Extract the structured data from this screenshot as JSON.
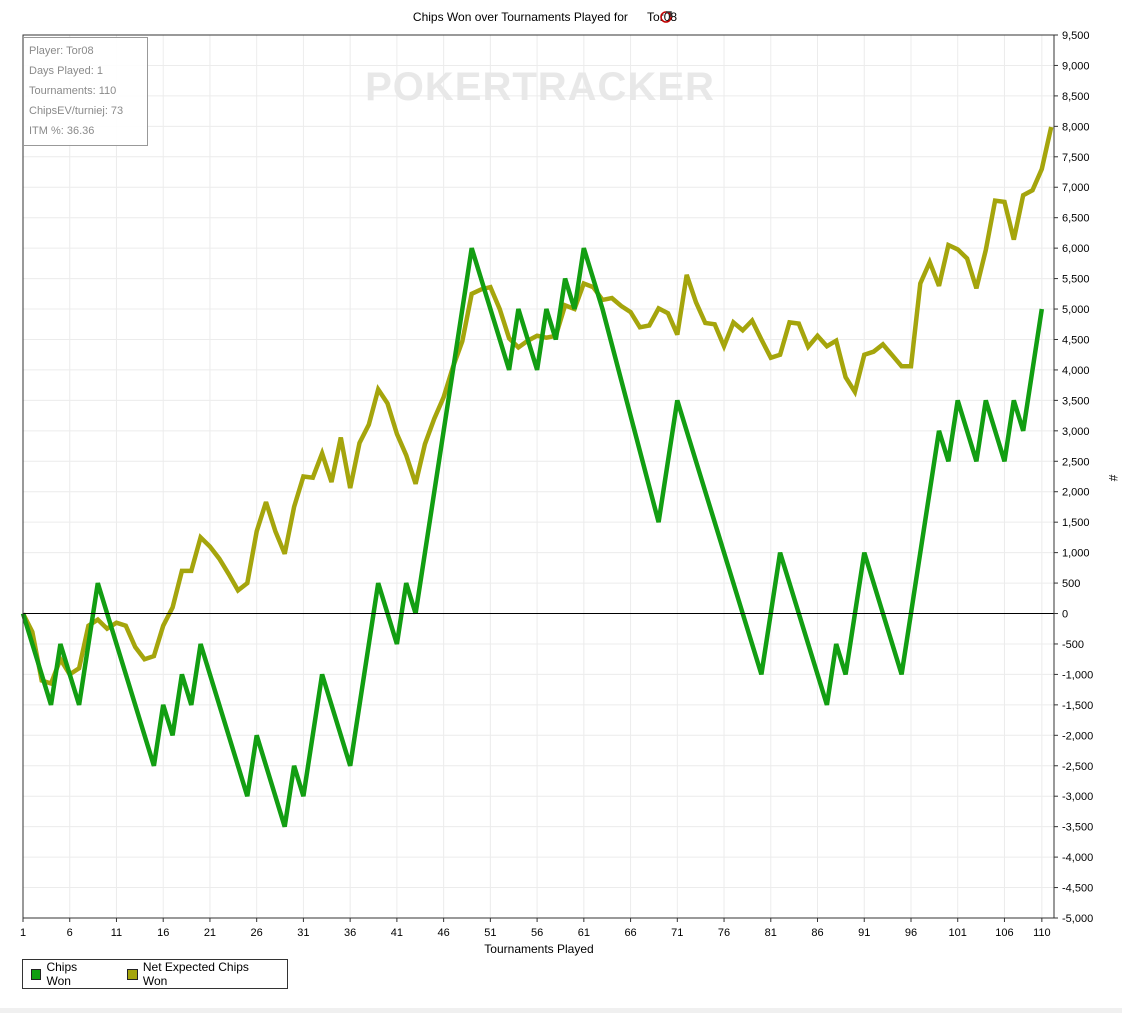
{
  "chart_data": {
    "type": "line",
    "title_prefix": "Chips Won over Tournaments Played for",
    "title_player": "Tor08",
    "xlabel": "Tournaments Played",
    "ylabel": "#",
    "xlim": [
      1,
      110
    ],
    "ylim": [
      -5000,
      9500
    ],
    "x_ticks": [
      1,
      6,
      11,
      16,
      21,
      26,
      31,
      36,
      41,
      46,
      51,
      56,
      61,
      66,
      71,
      76,
      81,
      86,
      91,
      96,
      101,
      106,
      110
    ],
    "y_ticks": [
      9500,
      9000,
      8500,
      8000,
      7500,
      7000,
      6500,
      6000,
      5500,
      5000,
      4500,
      4000,
      3500,
      3000,
      2500,
      2000,
      1500,
      1000,
      500,
      0,
      -500,
      -1000,
      -1500,
      -2000,
      -2500,
      -3000,
      -3500,
      -4000,
      -4500,
      -5000
    ],
    "y_tick_labels": [
      "9,500",
      "9,000",
      "8,500",
      "8,000",
      "7,500",
      "7,000",
      "6,500",
      "6,000",
      "5,500",
      "5,000",
      "4,500",
      "4,000",
      "3,500",
      "3,000",
      "2,500",
      "2,000",
      "1,500",
      "1,000",
      "500",
      "0",
      "-500",
      "-1,000",
      "-1,500",
      "-2,000",
      "-2,500",
      "-3,000",
      "-3,500",
      "-4,000",
      "-4,500",
      "-5,000"
    ],
    "grid": true,
    "legend_position": "bottom-left",
    "watermark": "POKERTRACKER",
    "series": [
      {
        "name": "Chips Won",
        "color": "#129e12",
        "points": [
          [
            1,
            0
          ],
          [
            4,
            -1500
          ],
          [
            5,
            -500
          ],
          [
            7,
            -1500
          ],
          [
            9,
            500
          ],
          [
            15,
            -2500
          ],
          [
            16,
            -1500
          ],
          [
            17,
            -2000
          ],
          [
            18,
            -1000
          ],
          [
            19,
            -1500
          ],
          [
            20,
            -500
          ],
          [
            25,
            -3000
          ],
          [
            26,
            -2000
          ],
          [
            29,
            -3500
          ],
          [
            30,
            -2500
          ],
          [
            31,
            -3000
          ],
          [
            33,
            -1000
          ],
          [
            36,
            -2500
          ],
          [
            39,
            500
          ],
          [
            41,
            -500
          ],
          [
            42,
            500
          ],
          [
            43,
            0
          ],
          [
            49,
            6000
          ],
          [
            53,
            4000
          ],
          [
            54,
            5000
          ],
          [
            56,
            4000
          ],
          [
            57,
            5000
          ],
          [
            58,
            4500
          ],
          [
            59,
            5500
          ],
          [
            60,
            5000
          ],
          [
            61,
            6000
          ],
          [
            63,
            5000
          ],
          [
            69,
            1500
          ],
          [
            71,
            3500
          ],
          [
            80,
            -1000
          ],
          [
            82,
            1000
          ],
          [
            87,
            -1500
          ],
          [
            88,
            -500
          ],
          [
            89,
            -1000
          ],
          [
            91,
            1000
          ],
          [
            95,
            -1000
          ],
          [
            99,
            3000
          ],
          [
            100,
            2500
          ],
          [
            101,
            3500
          ],
          [
            103,
            2500
          ],
          [
            104,
            3500
          ],
          [
            106,
            2500
          ],
          [
            107,
            3500
          ],
          [
            108,
            3000
          ],
          [
            110,
            5000
          ]
        ]
      },
      {
        "name": "Net Expected Chips Won",
        "color": "#a5a50c",
        "points": [
          [
            1,
            0
          ],
          [
            2,
            -300
          ],
          [
            3,
            -1100
          ],
          [
            4,
            -1150
          ],
          [
            5,
            -750
          ],
          [
            6,
            -1000
          ],
          [
            7,
            -900
          ],
          [
            8,
            -200
          ],
          [
            9,
            -100
          ],
          [
            10,
            -250
          ],
          [
            11,
            -150
          ],
          [
            12,
            -200
          ],
          [
            13,
            -550
          ],
          [
            14,
            -750
          ],
          [
            15,
            -700
          ],
          [
            16,
            -200
          ],
          [
            17,
            100
          ],
          [
            18,
            700
          ],
          [
            19,
            700
          ],
          [
            20,
            1250
          ],
          [
            21,
            1100
          ],
          [
            22,
            900
          ],
          [
            23,
            650
          ],
          [
            24,
            380
          ],
          [
            25,
            500
          ],
          [
            26,
            1350
          ],
          [
            27,
            1830
          ],
          [
            28,
            1350
          ],
          [
            29,
            980
          ],
          [
            30,
            1750
          ],
          [
            31,
            2250
          ],
          [
            32,
            2230
          ],
          [
            33,
            2630
          ],
          [
            34,
            2160
          ],
          [
            35,
            2890
          ],
          [
            36,
            2060
          ],
          [
            37,
            2800
          ],
          [
            38,
            3100
          ],
          [
            39,
            3680
          ],
          [
            40,
            3450
          ],
          [
            41,
            2950
          ],
          [
            42,
            2600
          ],
          [
            43,
            2130
          ],
          [
            44,
            2780
          ],
          [
            45,
            3200
          ],
          [
            46,
            3550
          ],
          [
            47,
            4050
          ],
          [
            48,
            4470
          ],
          [
            49,
            5250
          ],
          [
            50,
            5320
          ],
          [
            51,
            5360
          ],
          [
            52,
            5000
          ],
          [
            53,
            4520
          ],
          [
            54,
            4370
          ],
          [
            55,
            4480
          ],
          [
            56,
            4560
          ],
          [
            57,
            4530
          ],
          [
            58,
            4560
          ],
          [
            59,
            5060
          ],
          [
            60,
            5000
          ],
          [
            61,
            5420
          ],
          [
            62,
            5360
          ],
          [
            63,
            5150
          ],
          [
            64,
            5180
          ],
          [
            65,
            5050
          ],
          [
            66,
            4950
          ],
          [
            67,
            4700
          ],
          [
            68,
            4730
          ],
          [
            69,
            5010
          ],
          [
            70,
            4930
          ],
          [
            71,
            4580
          ],
          [
            72,
            5560
          ],
          [
            73,
            5110
          ],
          [
            74,
            4770
          ],
          [
            75,
            4750
          ],
          [
            76,
            4390
          ],
          [
            77,
            4780
          ],
          [
            78,
            4650
          ],
          [
            79,
            4810
          ],
          [
            80,
            4500
          ],
          [
            81,
            4200
          ],
          [
            82,
            4250
          ],
          [
            83,
            4780
          ],
          [
            84,
            4760
          ],
          [
            85,
            4380
          ],
          [
            86,
            4560
          ],
          [
            87,
            4390
          ],
          [
            88,
            4480
          ],
          [
            89,
            3880
          ],
          [
            90,
            3640
          ],
          [
            91,
            4250
          ],
          [
            92,
            4300
          ],
          [
            93,
            4420
          ],
          [
            94,
            4240
          ],
          [
            95,
            4060
          ],
          [
            96,
            4060
          ],
          [
            97,
            5420
          ],
          [
            98,
            5770
          ],
          [
            99,
            5380
          ],
          [
            100,
            6050
          ],
          [
            101,
            5980
          ],
          [
            102,
            5830
          ],
          [
            103,
            5340
          ],
          [
            104,
            5970
          ],
          [
            105,
            6780
          ],
          [
            106,
            6760
          ],
          [
            107,
            6140
          ],
          [
            108,
            6870
          ],
          [
            109,
            6950
          ],
          [
            110,
            7300
          ],
          [
            111,
            7990
          ]
        ]
      }
    ]
  },
  "stats": {
    "player": "Player: Tor08",
    "days_played": "Days Played: 1",
    "tournaments": "Tournaments: 110",
    "chips_ev": "ChipsEV/turniej: 73",
    "itm": "ITM %: 36.36"
  },
  "legend": {
    "chips_won": "Chips Won",
    "net_expected": "Net Expected Chips Won",
    "chips_won_color": "#129e12",
    "net_expected_color": "#a5a50c"
  }
}
